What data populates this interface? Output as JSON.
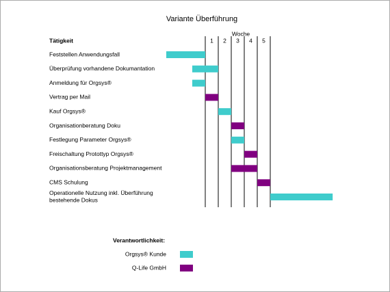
{
  "chart_data": {
    "type": "gantt",
    "title": "Variante Überführung",
    "task_header": "Tätigkeit",
    "week_label": "Woche",
    "xticks": [
      1,
      2,
      3,
      4,
      5
    ],
    "tasks": [
      {
        "label": [
          "Feststellen Anwendungsfall"
        ],
        "start": -3,
        "end": 0,
        "owner": 0
      },
      {
        "label": [
          "Überprüfung vorhandene Dokumantation"
        ],
        "start": -1,
        "end": 1,
        "owner": 0
      },
      {
        "label": [
          "Anmeldung für Orgsys®"
        ],
        "start": -1,
        "end": 0,
        "owner": 0
      },
      {
        "label": [
          "Vertrag per Mail"
        ],
        "start": 0,
        "end": 1,
        "owner": 1
      },
      {
        "label": [
          "Kauf Orgsys®"
        ],
        "start": 1,
        "end": 2,
        "owner": 0
      },
      {
        "label": [
          "Organisationberatung Doku"
        ],
        "start": 2,
        "end": 3,
        "owner": 1
      },
      {
        "label": [
          "Festlegung Parameter Orgsys®"
        ],
        "start": 2,
        "end": 3,
        "owner": 0
      },
      {
        "label": [
          "Freischaltung Protottyp Orgsys®"
        ],
        "start": 3,
        "end": 4,
        "owner": 1
      },
      {
        "label": [
          "Organisationsberatung Projektmanagement"
        ],
        "start": 2,
        "end": 4,
        "owner": 1
      },
      {
        "label": [
          "CMS Schulung"
        ],
        "start": 4,
        "end": 5,
        "owner": 1
      },
      {
        "label": [
          "Operationelle Nutzung inkl. Überführung",
          "bestehende Dokus"
        ],
        "start": 5,
        "end": 9.8,
        "owner": 0
      }
    ],
    "legend_title": "Verantwortlichkeit:",
    "series": [
      {
        "name": "Orgsys® Kunde",
        "color": "#3fcccc"
      },
      {
        "name": "Q-Life GmbH",
        "color": "#800080"
      }
    ]
  }
}
